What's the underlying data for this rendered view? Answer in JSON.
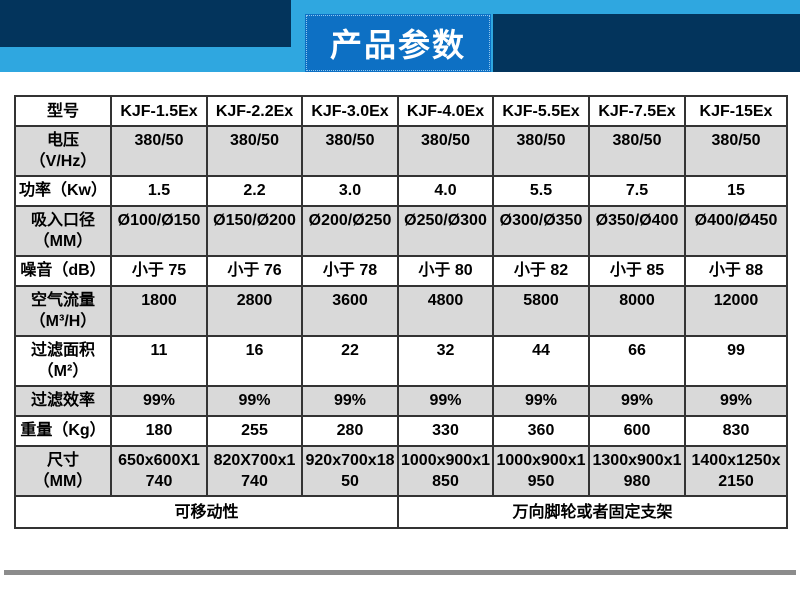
{
  "banner": {
    "title": "产品参数"
  },
  "colors": {
    "navy": "#03345C",
    "light_blue": "#2FA7E0",
    "title_blue": "#0D70C4",
    "row_gray": "#D9D9D9",
    "bar_gray": "#8C8C8C"
  },
  "table": {
    "model_row": {
      "label": "型号",
      "models": [
        "KJF-1.5Ex",
        "KJF-2.2Ex",
        "KJF-3.0Ex",
        "KJF-4.0Ex",
        "KJF-5.5Ex",
        "KJF-7.5Ex",
        "KJF-15Ex"
      ]
    },
    "rows": [
      {
        "label": "电压\n（V/Hz）",
        "shaded": true,
        "two_line": true,
        "values": [
          "380/50",
          "380/50",
          "380/50",
          "380/50",
          "380/50",
          "380/50",
          "380/50"
        ]
      },
      {
        "label": "功率（Kw）",
        "shaded": false,
        "two_line": false,
        "values": [
          "1.5",
          "2.2",
          "3.0",
          "4.0",
          "5.5",
          "7.5",
          "15"
        ]
      },
      {
        "label": "吸入口径\n（MM）",
        "shaded": true,
        "two_line": true,
        "values": [
          "Ø100/Ø150",
          "Ø150/Ø200",
          "Ø200/Ø250",
          "Ø250/Ø300",
          "Ø300/Ø350",
          "Ø350/Ø400",
          "Ø400/Ø450"
        ]
      },
      {
        "label": "噪音（dB）",
        "shaded": false,
        "two_line": false,
        "values": [
          "小于 75",
          "小于 76",
          "小于 78",
          "小于 80",
          "小于 82",
          "小于 85",
          "小于 88"
        ]
      },
      {
        "label": "空气流量\n（M³/H）",
        "shaded": true,
        "two_line": true,
        "values": [
          "1800",
          "2800",
          "3600",
          "4800",
          "5800",
          "8000",
          "12000"
        ]
      },
      {
        "label": "过滤面积\n（M²）",
        "shaded": false,
        "two_line": true,
        "values": [
          "11",
          "16",
          "22",
          "32",
          "44",
          "66",
          "99"
        ]
      },
      {
        "label": "过滤效率",
        "shaded": true,
        "two_line": false,
        "values": [
          "99%",
          "99%",
          "99%",
          "99%",
          "99%",
          "99%",
          "99%"
        ]
      },
      {
        "label": "重量（Kg）",
        "shaded": false,
        "two_line": false,
        "values": [
          "180",
          "255",
          "280",
          "330",
          "360",
          "600",
          "830"
        ]
      },
      {
        "label": "尺寸\n（MM）",
        "shaded": true,
        "two_line": true,
        "values": [
          "650x600X1740",
          "820X700x1740",
          "920x700x1850",
          "1000x900x1850",
          "1000x900x1950",
          "1300x900x1980",
          "1400x1250x2150"
        ]
      }
    ],
    "footer": {
      "left": "可移动性",
      "right": "万向脚轮或者固定支架"
    }
  }
}
